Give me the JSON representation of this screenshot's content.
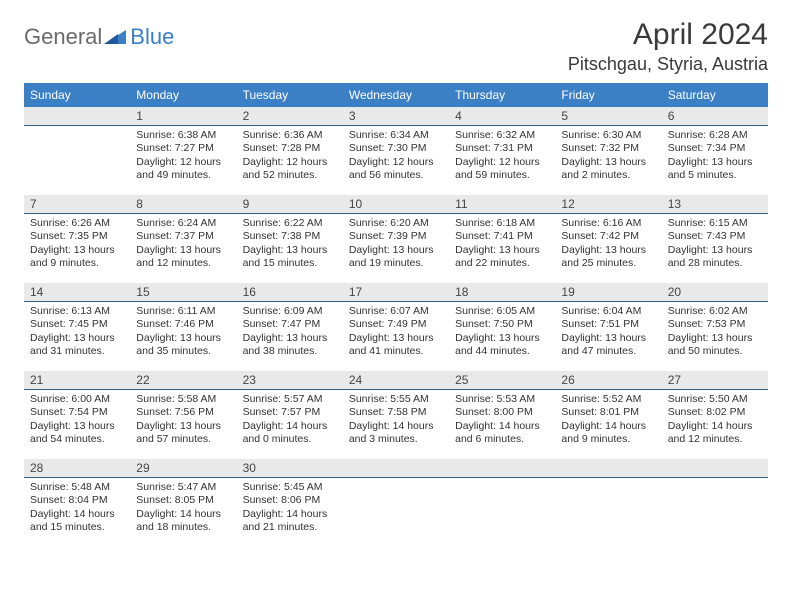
{
  "logo": {
    "text1": "General",
    "text2": "Blue",
    "color_gray": "#6b6b6b",
    "color_blue": "#3b7fc4"
  },
  "title": "April 2024",
  "location": "Pitschgau, Styria, Austria",
  "colors": {
    "header_bg": "#3b7fc4",
    "header_text": "#ffffff",
    "daynum_bg": "#e9e9e9",
    "daynum_border": "#3b5f7f",
    "body_text": "#333333",
    "page_bg": "#ffffff"
  },
  "weekdays": [
    "Sunday",
    "Monday",
    "Tuesday",
    "Wednesday",
    "Thursday",
    "Friday",
    "Saturday"
  ],
  "weeks": [
    [
      null,
      {
        "n": "1",
        "sunrise": "Sunrise: 6:38 AM",
        "sunset": "Sunset: 7:27 PM",
        "daylight": "Daylight: 12 hours and 49 minutes."
      },
      {
        "n": "2",
        "sunrise": "Sunrise: 6:36 AM",
        "sunset": "Sunset: 7:28 PM",
        "daylight": "Daylight: 12 hours and 52 minutes."
      },
      {
        "n": "3",
        "sunrise": "Sunrise: 6:34 AM",
        "sunset": "Sunset: 7:30 PM",
        "daylight": "Daylight: 12 hours and 56 minutes."
      },
      {
        "n": "4",
        "sunrise": "Sunrise: 6:32 AM",
        "sunset": "Sunset: 7:31 PM",
        "daylight": "Daylight: 12 hours and 59 minutes."
      },
      {
        "n": "5",
        "sunrise": "Sunrise: 6:30 AM",
        "sunset": "Sunset: 7:32 PM",
        "daylight": "Daylight: 13 hours and 2 minutes."
      },
      {
        "n": "6",
        "sunrise": "Sunrise: 6:28 AM",
        "sunset": "Sunset: 7:34 PM",
        "daylight": "Daylight: 13 hours and 5 minutes."
      }
    ],
    [
      {
        "n": "7",
        "sunrise": "Sunrise: 6:26 AM",
        "sunset": "Sunset: 7:35 PM",
        "daylight": "Daylight: 13 hours and 9 minutes."
      },
      {
        "n": "8",
        "sunrise": "Sunrise: 6:24 AM",
        "sunset": "Sunset: 7:37 PM",
        "daylight": "Daylight: 13 hours and 12 minutes."
      },
      {
        "n": "9",
        "sunrise": "Sunrise: 6:22 AM",
        "sunset": "Sunset: 7:38 PM",
        "daylight": "Daylight: 13 hours and 15 minutes."
      },
      {
        "n": "10",
        "sunrise": "Sunrise: 6:20 AM",
        "sunset": "Sunset: 7:39 PM",
        "daylight": "Daylight: 13 hours and 19 minutes."
      },
      {
        "n": "11",
        "sunrise": "Sunrise: 6:18 AM",
        "sunset": "Sunset: 7:41 PM",
        "daylight": "Daylight: 13 hours and 22 minutes."
      },
      {
        "n": "12",
        "sunrise": "Sunrise: 6:16 AM",
        "sunset": "Sunset: 7:42 PM",
        "daylight": "Daylight: 13 hours and 25 minutes."
      },
      {
        "n": "13",
        "sunrise": "Sunrise: 6:15 AM",
        "sunset": "Sunset: 7:43 PM",
        "daylight": "Daylight: 13 hours and 28 minutes."
      }
    ],
    [
      {
        "n": "14",
        "sunrise": "Sunrise: 6:13 AM",
        "sunset": "Sunset: 7:45 PM",
        "daylight": "Daylight: 13 hours and 31 minutes."
      },
      {
        "n": "15",
        "sunrise": "Sunrise: 6:11 AM",
        "sunset": "Sunset: 7:46 PM",
        "daylight": "Daylight: 13 hours and 35 minutes."
      },
      {
        "n": "16",
        "sunrise": "Sunrise: 6:09 AM",
        "sunset": "Sunset: 7:47 PM",
        "daylight": "Daylight: 13 hours and 38 minutes."
      },
      {
        "n": "17",
        "sunrise": "Sunrise: 6:07 AM",
        "sunset": "Sunset: 7:49 PM",
        "daylight": "Daylight: 13 hours and 41 minutes."
      },
      {
        "n": "18",
        "sunrise": "Sunrise: 6:05 AM",
        "sunset": "Sunset: 7:50 PM",
        "daylight": "Daylight: 13 hours and 44 minutes."
      },
      {
        "n": "19",
        "sunrise": "Sunrise: 6:04 AM",
        "sunset": "Sunset: 7:51 PM",
        "daylight": "Daylight: 13 hours and 47 minutes."
      },
      {
        "n": "20",
        "sunrise": "Sunrise: 6:02 AM",
        "sunset": "Sunset: 7:53 PM",
        "daylight": "Daylight: 13 hours and 50 minutes."
      }
    ],
    [
      {
        "n": "21",
        "sunrise": "Sunrise: 6:00 AM",
        "sunset": "Sunset: 7:54 PM",
        "daylight": "Daylight: 13 hours and 54 minutes."
      },
      {
        "n": "22",
        "sunrise": "Sunrise: 5:58 AM",
        "sunset": "Sunset: 7:56 PM",
        "daylight": "Daylight: 13 hours and 57 minutes."
      },
      {
        "n": "23",
        "sunrise": "Sunrise: 5:57 AM",
        "sunset": "Sunset: 7:57 PM",
        "daylight": "Daylight: 14 hours and 0 minutes."
      },
      {
        "n": "24",
        "sunrise": "Sunrise: 5:55 AM",
        "sunset": "Sunset: 7:58 PM",
        "daylight": "Daylight: 14 hours and 3 minutes."
      },
      {
        "n": "25",
        "sunrise": "Sunrise: 5:53 AM",
        "sunset": "Sunset: 8:00 PM",
        "daylight": "Daylight: 14 hours and 6 minutes."
      },
      {
        "n": "26",
        "sunrise": "Sunrise: 5:52 AM",
        "sunset": "Sunset: 8:01 PM",
        "daylight": "Daylight: 14 hours and 9 minutes."
      },
      {
        "n": "27",
        "sunrise": "Sunrise: 5:50 AM",
        "sunset": "Sunset: 8:02 PM",
        "daylight": "Daylight: 14 hours and 12 minutes."
      }
    ],
    [
      {
        "n": "28",
        "sunrise": "Sunrise: 5:48 AM",
        "sunset": "Sunset: 8:04 PM",
        "daylight": "Daylight: 14 hours and 15 minutes."
      },
      {
        "n": "29",
        "sunrise": "Sunrise: 5:47 AM",
        "sunset": "Sunset: 8:05 PM",
        "daylight": "Daylight: 14 hours and 18 minutes."
      },
      {
        "n": "30",
        "sunrise": "Sunrise: 5:45 AM",
        "sunset": "Sunset: 8:06 PM",
        "daylight": "Daylight: 14 hours and 21 minutes."
      },
      null,
      null,
      null,
      null
    ]
  ]
}
